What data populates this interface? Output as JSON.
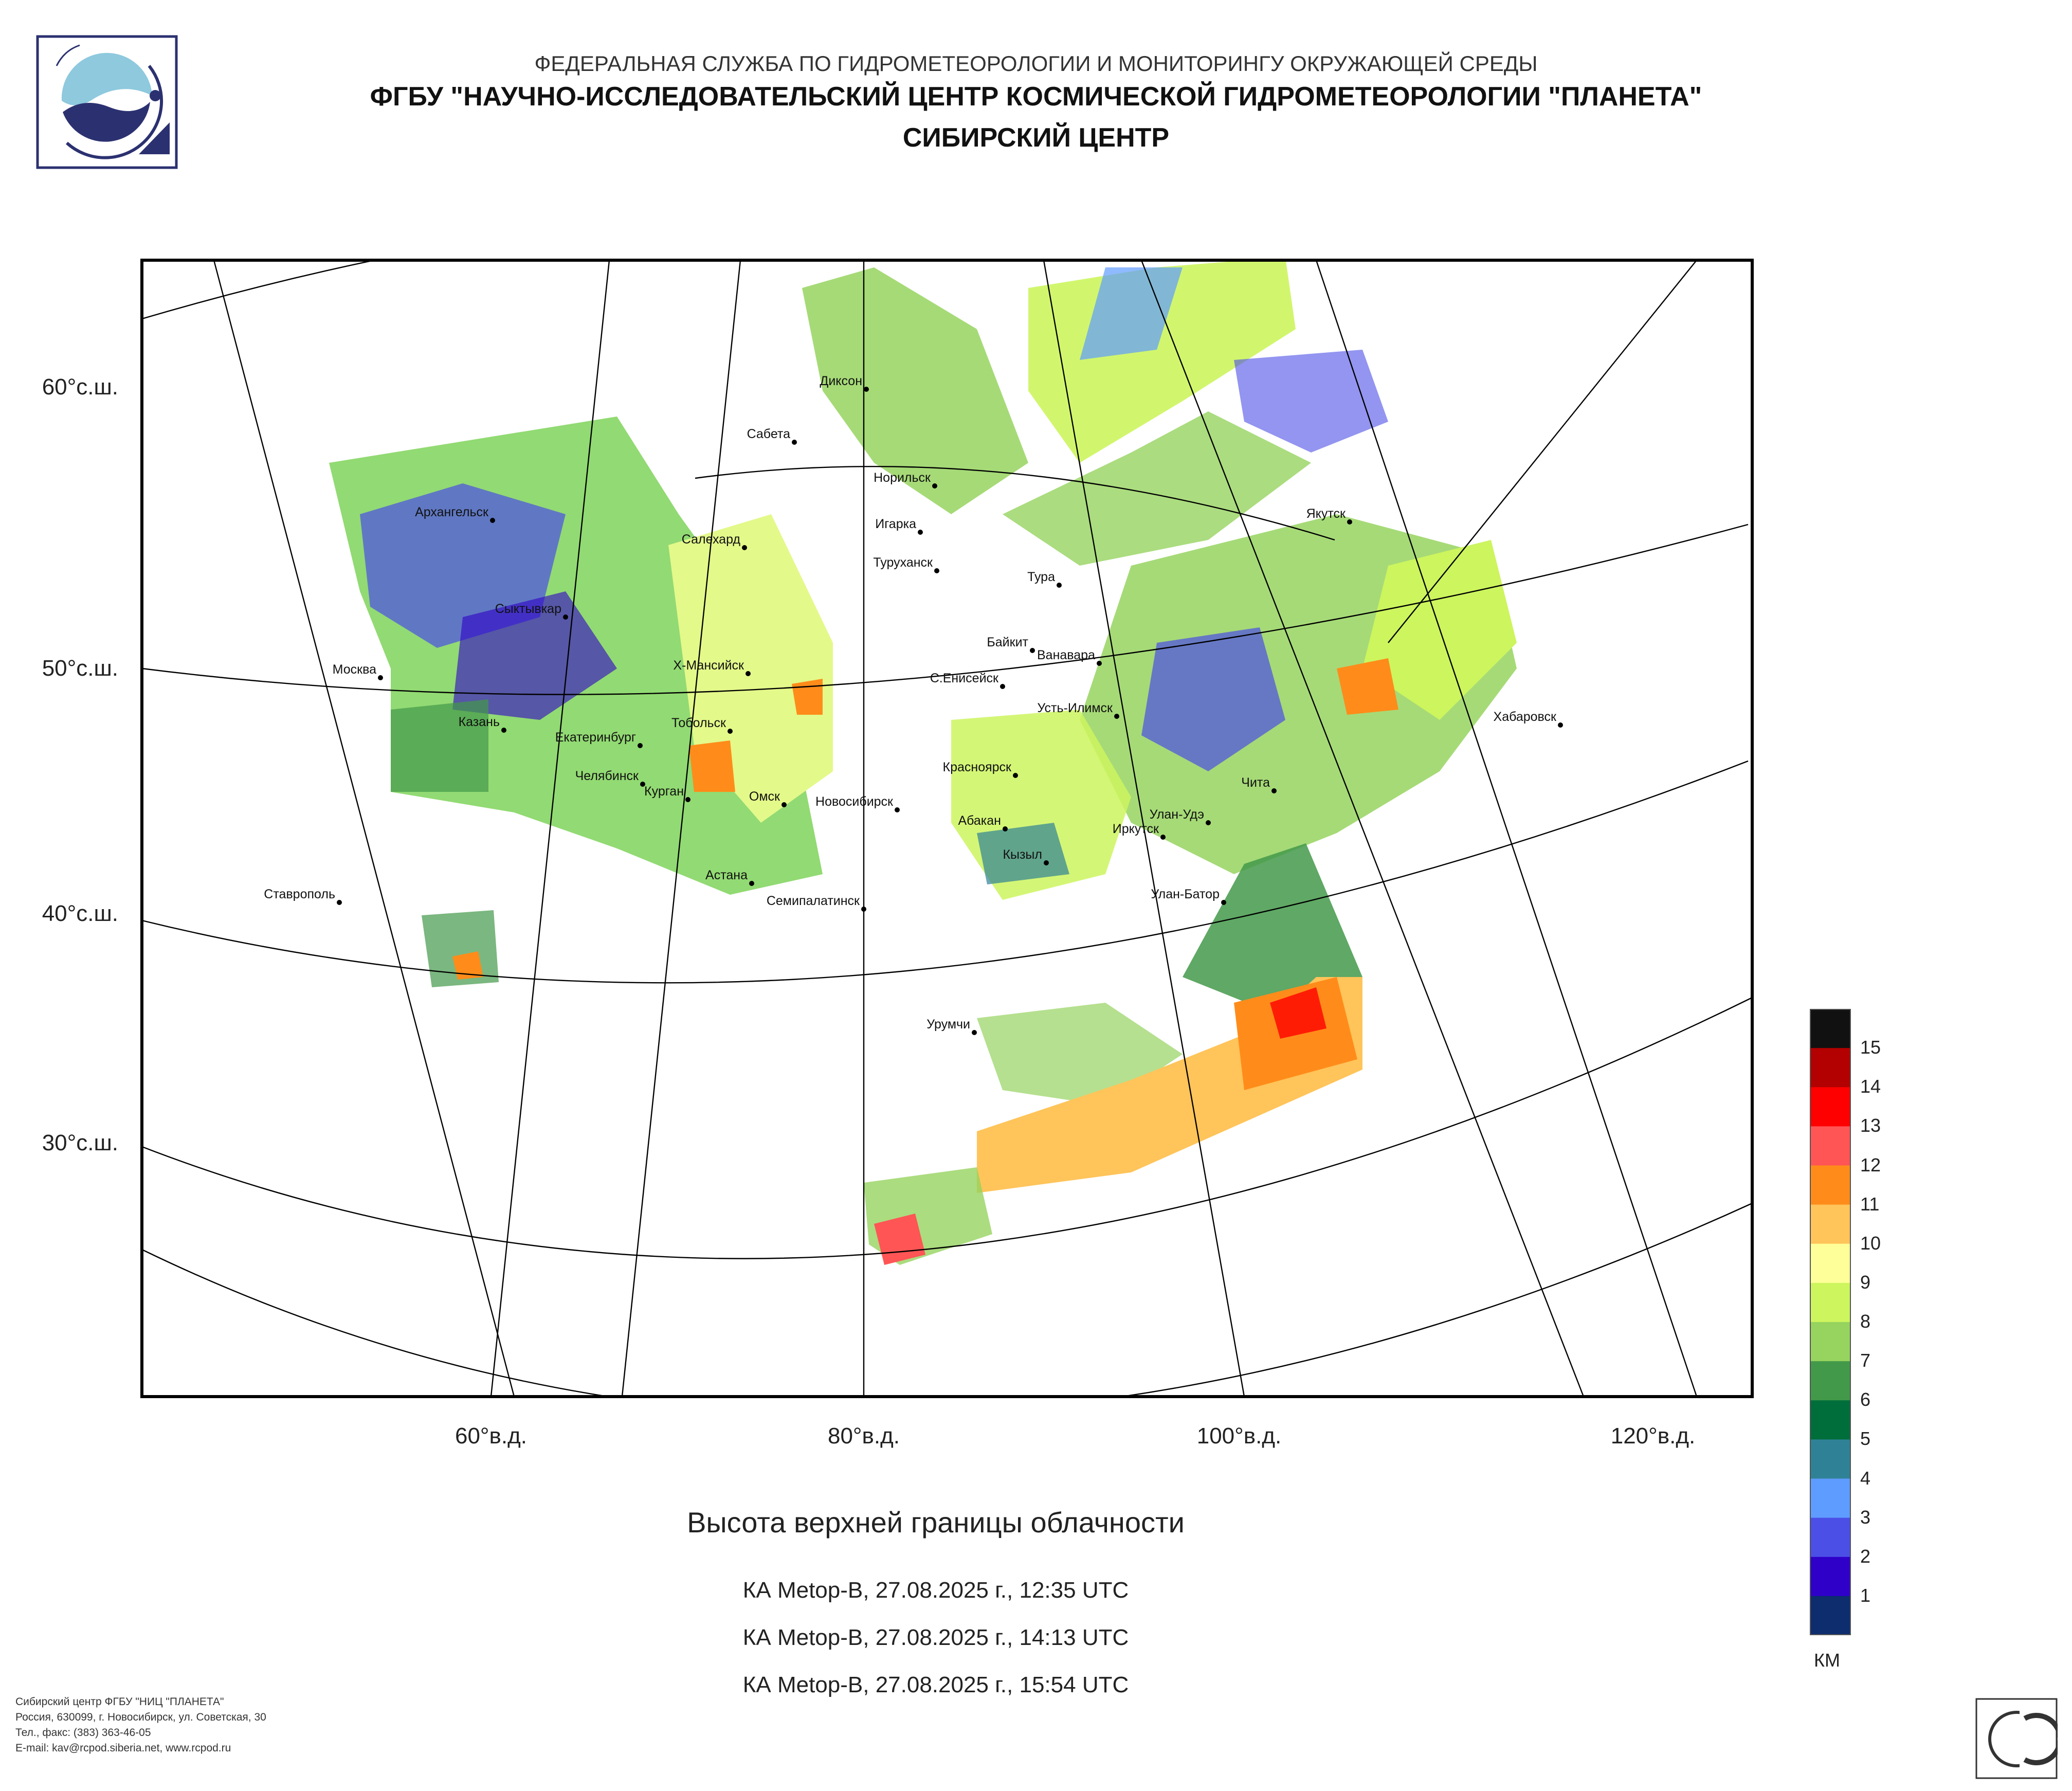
{
  "header": {
    "agency": "ФЕДЕРАЛЬНАЯ СЛУЖБА ПО ГИДРОМЕТЕОРОЛОГИИ И МОНИТОРИНГУ ОКРУЖАЮЩЕЙ СРЕДЫ",
    "org": "ФГБУ \"НАУЧНО-ИССЛЕДОВАТЕЛЬСКИЙ ЦЕНТР КОСМИЧЕСКОЙ ГИДРОМЕТЕОРОЛОГИИ \"ПЛАНЕТА\"",
    "center": "СИБИРСКИЙ ЦЕНТР"
  },
  "map": {
    "lat_labels": [
      "60°с.ш.",
      "50°с.ш.",
      "40°с.ш.",
      "30°с.ш."
    ],
    "lon_labels": [
      "60°в.д.",
      "80°в.д.",
      "100°в.д.",
      "120°в.д."
    ],
    "cities": [
      "Диксон",
      "Сабета",
      "Норильск",
      "Игарка",
      "Туруханск",
      "Архангельск",
      "Салехард",
      "Тура",
      "Якутск",
      "Сыктывкар",
      "Байкит",
      "Ванавара",
      "Москва",
      "Х-Мансийск",
      "С.Енисейск",
      "Усть-Илимск",
      "Казань",
      "Екатеринбург",
      "Тобольск",
      "Хабаровск",
      "Красноярск",
      "Челябинск",
      "Курган",
      "Омск",
      "Новосибирск",
      "Чита",
      "Абакан",
      "Улан-Удэ",
      "Иркутск",
      "Кызыл",
      "Астана",
      "Ставрополь",
      "Улан-Батор",
      "Семипалатинск",
      "Урумчи"
    ]
  },
  "title": "Высота верхней границы облачности",
  "passes": [
    "КА Metop-B, 27.08.2025 г., 12:35 UTC",
    "КА Metop-B, 27.08.2025 г., 14:13 UTC",
    "КА Metop-B, 27.08.2025 г., 15:54 UTC"
  ],
  "legend": {
    "unit": "КМ",
    "labels": [
      "15",
      "14",
      "13",
      "12",
      "11",
      "10",
      "9",
      "8",
      "7",
      "6",
      "5",
      "4",
      "3",
      "2",
      "1"
    ],
    "colors": [
      "#111111",
      "#b30000",
      "#ff0000",
      "#ff5555",
      "#ff8c1a",
      "#ffc45a",
      "#ffff99",
      "#ccf55e",
      "#96d35f",
      "#43994a",
      "#006e3a",
      "#2f8296",
      "#5f9cff",
      "#4b4fe6",
      "#2f00c8",
      "#0d2d6e"
    ]
  },
  "footer": [
    "Сибирский центр ФГБУ \"НИЦ \"ПЛАНЕТА\"",
    "Россия, 630099, г. Новосибирск, ул. Советская, 30",
    "Тел., факс: (383) 363-46-05",
    "E-mail: kav@rcpod.siberia.net, www.rcpod.ru"
  ],
  "colors": {
    "logo_blue": "#8ec9de",
    "logo_navy": "#2b3170",
    "frame": "#000000"
  }
}
